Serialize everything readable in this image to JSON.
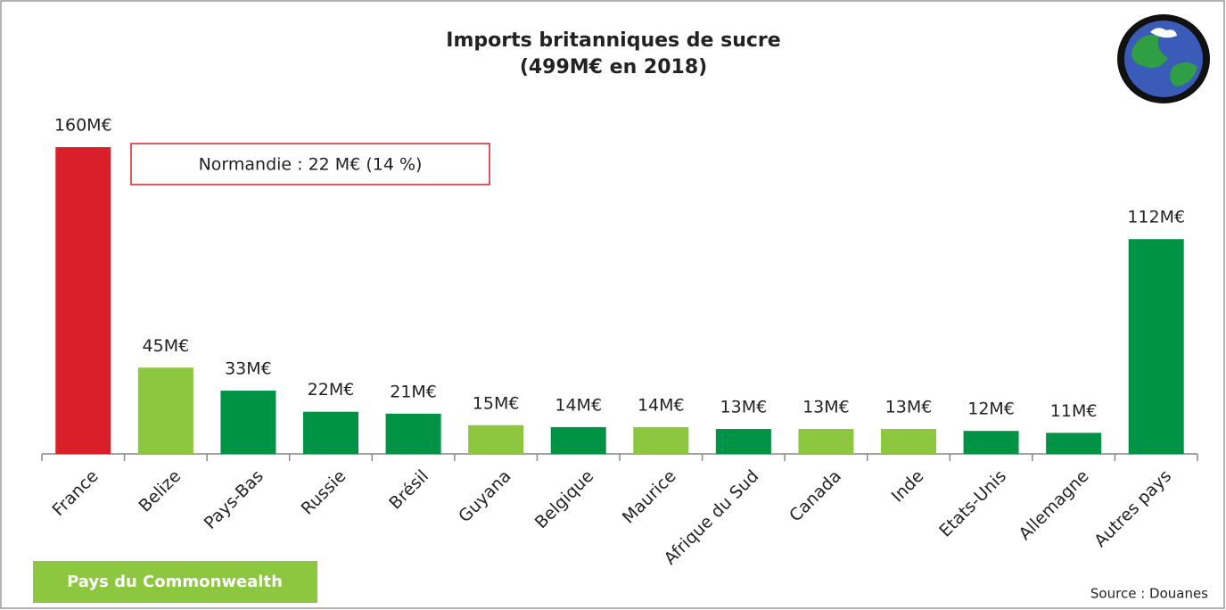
{
  "chart_data": {
    "type": "bar",
    "title": "Imports britanniques de sucre",
    "subtitle": "(499M€ en 2018)",
    "categories": [
      "France",
      "Belize",
      "Pays-Bas",
      "Russie",
      "Brésil",
      "Guyana",
      "Belgique",
      "Maurice",
      "Afrique du Sud",
      "Canada",
      "Inde",
      "Etats-Unis",
      "Allemagne",
      "Autres pays"
    ],
    "values": [
      160,
      45,
      33,
      22,
      21,
      15,
      14,
      14,
      13,
      13,
      13,
      12,
      11,
      112
    ],
    "value_labels": [
      "160M€",
      "45M€",
      "33M€",
      "22M€",
      "21M€",
      "15M€",
      "14M€",
      "14M€",
      "13M€",
      "13M€",
      "13M€",
      "12M€",
      "11M€",
      "112M€"
    ],
    "colors": [
      "#d9202a",
      "#8dc63f",
      "#009245",
      "#009245",
      "#009245",
      "#8dc63f",
      "#009245",
      "#8dc63f",
      "#009245",
      "#8dc63f",
      "#8dc63f",
      "#009245",
      "#009245",
      "#009245"
    ],
    "annotation": "Normandie : 22 M€ (14 %)",
    "legend": [
      {
        "name": "Pays du Commonwealth",
        "color": "#8dc63f"
      }
    ],
    "source": "Source : Douanes"
  }
}
